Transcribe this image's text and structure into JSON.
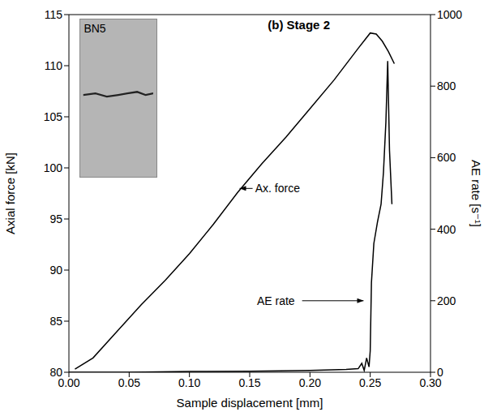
{
  "chart_data": {
    "type": "line",
    "title": "(b) Stage 2",
    "inset_label": "BN5",
    "x_label": "Sample displacement [mm]",
    "y_label": "Axial force [kN]",
    "y2_label": "AE rate [s⁻¹]",
    "xlim": [
      0,
      0.3
    ],
    "xticks": [
      {
        "value": 0,
        "label": "0.00"
      },
      0.05,
      {
        "value": 0.1,
        "label": "0.10"
      },
      0.15,
      {
        "value": 0.2,
        "label": "0.20"
      },
      0.25,
      {
        "value": 0.3,
        "label": "0.30"
      }
    ],
    "ylim": [
      80,
      115
    ],
    "yticks": [
      80,
      85,
      90,
      95,
      100,
      105,
      110,
      115
    ],
    "y2lim": [
      0,
      1000
    ],
    "y2ticks": [
      0,
      200,
      400,
      600,
      800,
      1000
    ],
    "grid": false,
    "series": [
      {
        "name": "Ax. force",
        "color": "#000000",
        "axis": "y",
        "x": [
          0.005,
          0.02,
          0.04,
          0.06,
          0.08,
          0.1,
          0.12,
          0.14,
          0.16,
          0.18,
          0.2,
          0.22,
          0.24,
          0.25,
          0.255,
          0.26,
          0.265,
          0.27
        ],
        "values": [
          80.3,
          81.4,
          84.0,
          86.6,
          89.0,
          91.6,
          94.5,
          97.6,
          100.4,
          103.0,
          105.8,
          108.6,
          111.7,
          113.2,
          113.1,
          112.4,
          111.4,
          110.2
        ]
      },
      {
        "name": "AE rate",
        "color": "#000000",
        "axis": "y2",
        "x": [
          0.0,
          0.05,
          0.1,
          0.15,
          0.2,
          0.23,
          0.24,
          0.243,
          0.245,
          0.247,
          0.249,
          0.25,
          0.251,
          0.253,
          0.256,
          0.259,
          0.261,
          0.263,
          0.2645,
          0.266,
          0.268
        ],
        "values": [
          0,
          0,
          2,
          3,
          5,
          8,
          10,
          25,
          5,
          40,
          15,
          60,
          250,
          360,
          420,
          470,
          560,
          700,
          870,
          620,
          470
        ]
      }
    ]
  }
}
